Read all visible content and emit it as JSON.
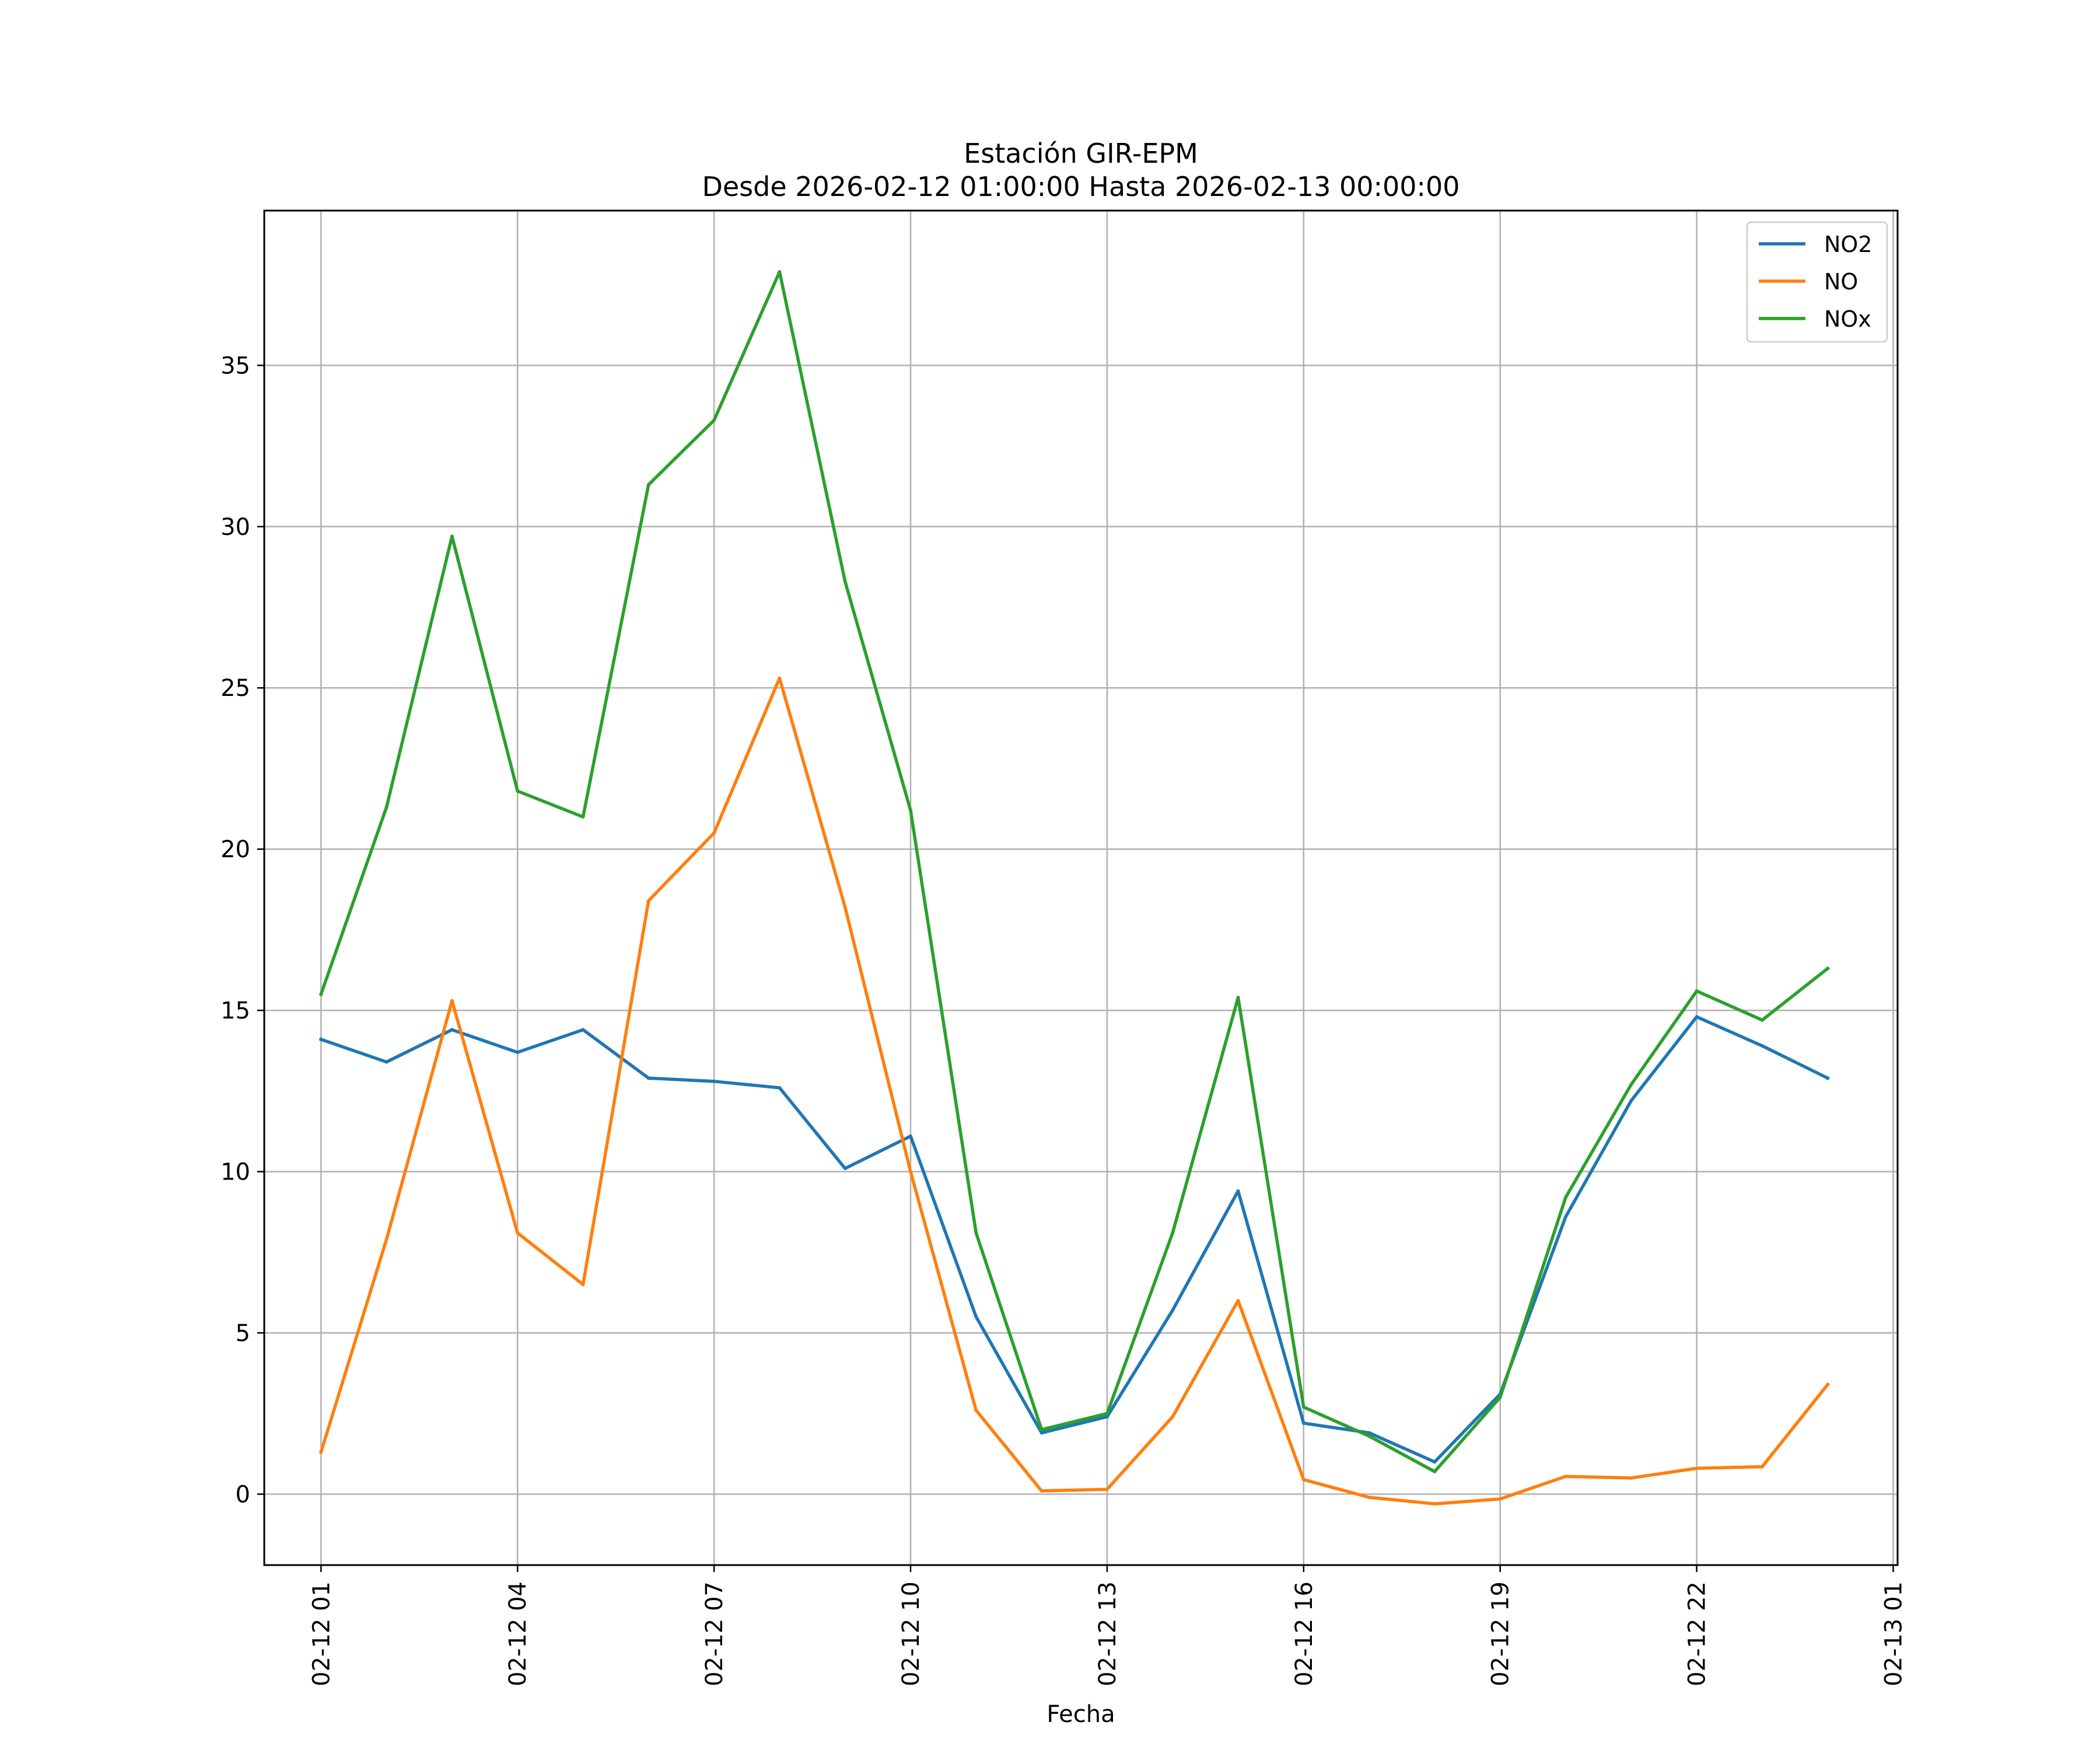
{
  "chart_data": {
    "type": "line",
    "title_line1": "Estación GIR-EPM",
    "title_line2": "Desde 2026-02-12 01:00:00 Hasta 2026-02-13 00:00:00",
    "xlabel": "Fecha",
    "ylabel": "",
    "x": [
      "2026-02-12 01:00",
      "2026-02-12 02:00",
      "2026-02-12 03:00",
      "2026-02-12 04:00",
      "2026-02-12 05:00",
      "2026-02-12 06:00",
      "2026-02-12 07:00",
      "2026-02-12 08:00",
      "2026-02-12 09:00",
      "2026-02-12 10:00",
      "2026-02-12 11:00",
      "2026-02-12 12:00",
      "2026-02-12 13:00",
      "2026-02-12 14:00",
      "2026-02-12 15:00",
      "2026-02-12 16:00",
      "2026-02-12 17:00",
      "2026-02-12 18:00",
      "2026-02-12 19:00",
      "2026-02-12 20:00",
      "2026-02-12 21:00",
      "2026-02-12 22:00",
      "2026-02-12 23:00",
      "2026-02-13 00:00"
    ],
    "xlim": [
      "2026-02-12 00:08",
      "2026-02-13 01:04"
    ],
    "ylim": [
      -2.2,
      39.8
    ],
    "x_ticks": [
      "2026-02-12 01:00",
      "2026-02-12 04:00",
      "2026-02-12 07:00",
      "2026-02-12 10:00",
      "2026-02-12 13:00",
      "2026-02-12 16:00",
      "2026-02-12 19:00",
      "2026-02-12 22:00",
      "2026-02-13 01:00"
    ],
    "x_tick_labels": [
      "02-12 01",
      "02-12 04",
      "02-12 07",
      "02-12 10",
      "02-12 13",
      "02-12 16",
      "02-12 19",
      "02-12 22",
      "02-13 01"
    ],
    "y_ticks": [
      0,
      5,
      10,
      15,
      20,
      25,
      30,
      35
    ],
    "y_tick_labels": [
      "0",
      "5",
      "10",
      "15",
      "20",
      "25",
      "30",
      "35"
    ],
    "grid": true,
    "legend_position": "top-right",
    "series": [
      {
        "name": "NO2",
        "color": "#1f77b4",
        "values": [
          14.1,
          13.4,
          14.4,
          13.7,
          14.4,
          12.9,
          12.8,
          12.6,
          10.1,
          11.1,
          5.5,
          1.9,
          2.4,
          5.7,
          9.4,
          2.2,
          1.9,
          1.0,
          3.1,
          8.6,
          12.2,
          14.8,
          13.9,
          12.9
        ]
      },
      {
        "name": "NO",
        "color": "#ff7f0e",
        "values": [
          1.3,
          7.9,
          15.3,
          8.1,
          6.5,
          18.4,
          20.5,
          25.3,
          18.2,
          10.0,
          2.6,
          0.1,
          0.15,
          2.4,
          6.0,
          0.45,
          -0.1,
          -0.3,
          -0.15,
          0.55,
          0.5,
          0.8,
          0.85,
          3.4
        ]
      },
      {
        "name": "NOx",
        "color": "#2ca02c",
        "values": [
          15.5,
          21.3,
          29.7,
          21.8,
          21.0,
          31.3,
          33.3,
          37.9,
          28.3,
          21.2,
          8.1,
          2.0,
          2.5,
          8.1,
          15.4,
          2.7,
          1.8,
          0.7,
          3.0,
          9.2,
          12.7,
          15.6,
          14.7,
          16.3
        ]
      }
    ]
  }
}
